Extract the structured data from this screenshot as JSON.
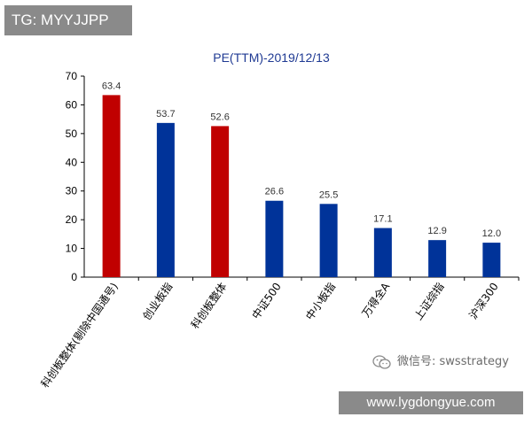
{
  "tag": "TG: MYYJJPP",
  "watermark": {
    "text": "微信号: swsstrategy",
    "icon": "wechat-icon"
  },
  "url": "www.lygdongyue.com",
  "colors": {
    "highlight": "#c00000",
    "normal": "#003399",
    "title": "#1f3a93"
  },
  "chart_data": {
    "type": "bar",
    "title": "PE(TTM)-2019/12/13",
    "xlabel": "",
    "ylabel": "",
    "ylim": [
      0,
      70
    ],
    "yticks": [
      0,
      10,
      20,
      30,
      40,
      50,
      60,
      70
    ],
    "grid": false,
    "categories": [
      "科创板整体(剔除中国通号)",
      "创业板指",
      "科创板整体",
      "中证500",
      "中小板指",
      "万得全A",
      "上证综指",
      "沪深300"
    ],
    "values": [
      63.4,
      53.7,
      52.6,
      26.6,
      25.5,
      17.1,
      12.9,
      12.0
    ],
    "value_labels": [
      "63.4",
      "53.7",
      "52.6",
      "26.6",
      "25.5",
      "17.1",
      "12.9",
      "12.0"
    ],
    "bar_colors": [
      "#c00000",
      "#003399",
      "#c00000",
      "#003399",
      "#003399",
      "#003399",
      "#003399",
      "#003399"
    ]
  }
}
